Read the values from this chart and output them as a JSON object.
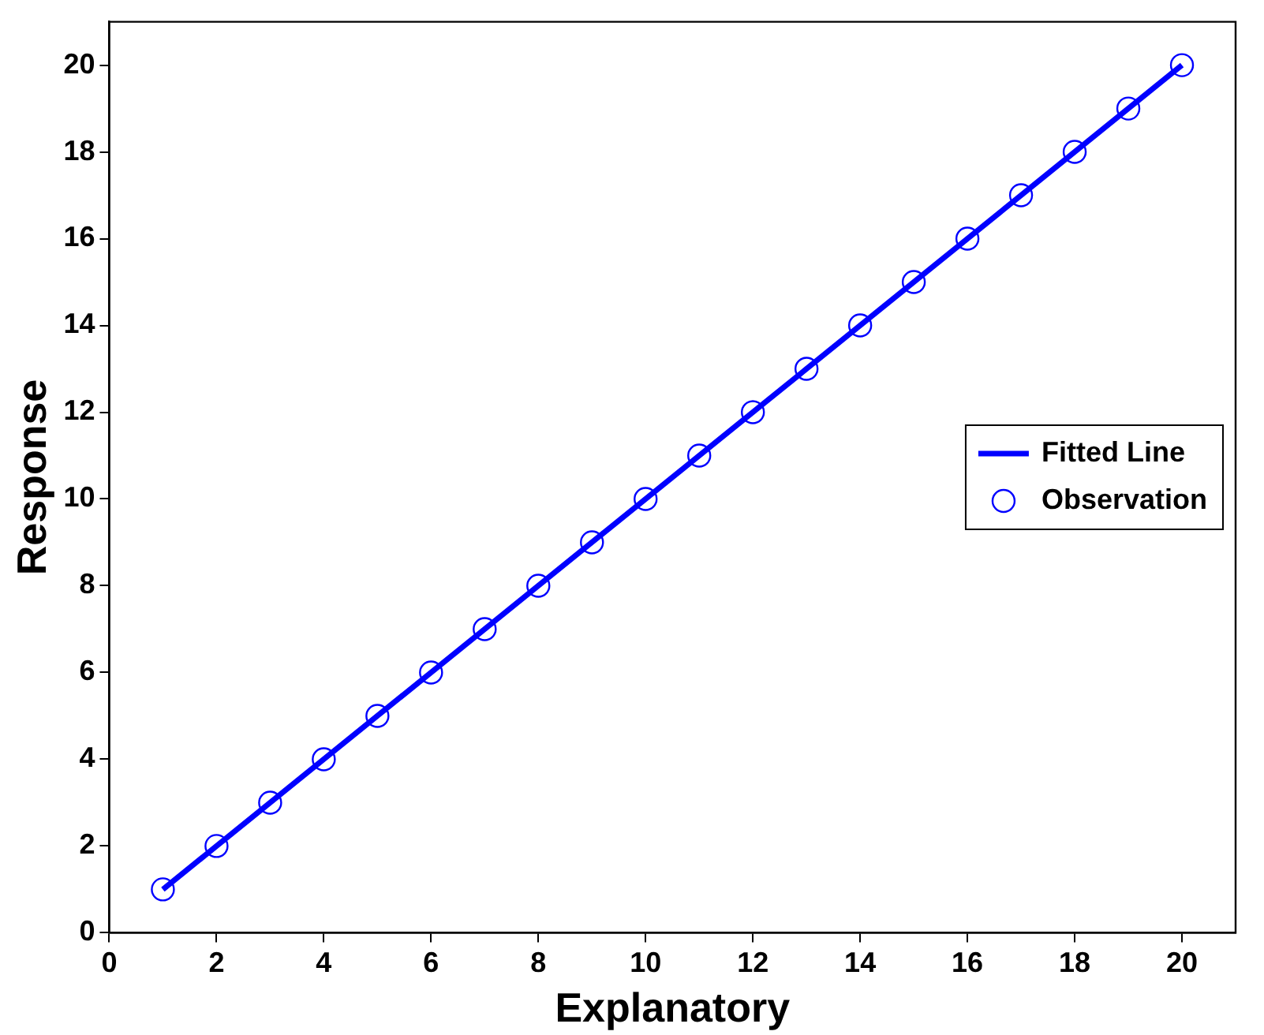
{
  "chart_data": {
    "type": "scatter",
    "xlabel": "Explanatory",
    "ylabel": "Response",
    "xlim": [
      0,
      21
    ],
    "xticks": [
      0,
      2,
      4,
      6,
      8,
      10,
      12,
      14,
      16,
      18,
      20
    ],
    "ylim": [
      0,
      21
    ],
    "yticks": [
      0,
      2,
      4,
      6,
      8,
      10,
      12,
      14,
      16,
      18,
      20
    ],
    "grid": false,
    "legend": "right",
    "series": [
      {
        "name": "Fitted Line",
        "type": "line",
        "color": "#0000ff",
        "marker": "none",
        "line_style": "solid",
        "x": [
          1,
          20
        ],
        "values": [
          1,
          20
        ]
      },
      {
        "name": "Observation",
        "type": "scatter",
        "color": "#0000ff",
        "marker": "circle",
        "x": [
          1,
          2,
          3,
          4,
          5,
          6,
          7,
          8,
          9,
          10,
          11,
          12,
          13,
          14,
          15,
          16,
          17,
          18,
          19,
          20
        ],
        "values": [
          1,
          2,
          3,
          4,
          5,
          6,
          7,
          8,
          9,
          10,
          11,
          12,
          13,
          14,
          15,
          16,
          17,
          18,
          19,
          20
        ]
      }
    ]
  }
}
